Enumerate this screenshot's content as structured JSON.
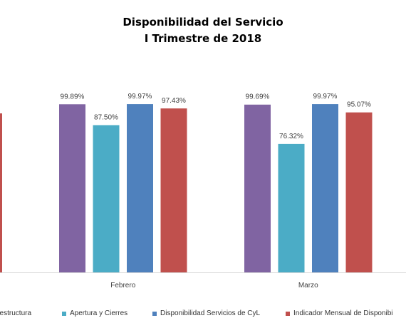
{
  "chart_data": {
    "type": "bar",
    "title": "Disponibilidad del Servicio",
    "subtitle": "I Trimestre de 2018",
    "categories": [
      "Febrero",
      "Marzo"
    ],
    "series": [
      {
        "name": "...aestructura",
        "color": "#8064a2",
        "values": [
          99.89,
          99.69
        ],
        "labels": [
          "99.89%",
          "99.69%"
        ]
      },
      {
        "name": "Apertura y Cierres",
        "color": "#4bacc6",
        "values": [
          87.5,
          76.32
        ],
        "labels": [
          "87.50%",
          "76.32%"
        ]
      },
      {
        "name": "Disponibilidad Servicios de CyL",
        "color": "#4f81bd",
        "values": [
          99.97,
          99.97
        ],
        "labels": [
          "99.97%",
          "99.97%"
        ]
      },
      {
        "name": "Indicador Mensual de Disponibi...",
        "color": "#c0504d",
        "values": [
          97.43,
          95.07
        ],
        "labels": [
          "97.43%",
          "95.07%"
        ]
      }
    ],
    "partial_bar": {
      "color": "#c0504d"
    },
    "legend_position": "bottom",
    "grid": false
  }
}
